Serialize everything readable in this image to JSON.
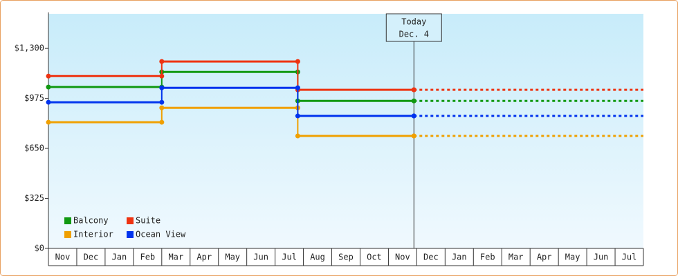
{
  "chart_data": {
    "type": "step",
    "categories": [
      "Nov",
      "Dec",
      "Jan",
      "Feb",
      "Mar",
      "Apr",
      "May",
      "Jun",
      "Jul",
      "Aug",
      "Sep",
      "Oct",
      "Nov",
      "Dec",
      "Jan",
      "Feb",
      "Mar",
      "Apr",
      "May",
      "Jun",
      "Jul"
    ],
    "x": [
      0,
      4,
      8.8,
      12.9
    ],
    "xlim": [
      0,
      21
    ],
    "ylim": [
      0,
      1525
    ],
    "yticks": [
      {
        "value": 0,
        "label": "$0"
      },
      {
        "value": 325,
        "label": "$325"
      },
      {
        "value": 650,
        "label": "$650"
      },
      {
        "value": 975,
        "label": "$975"
      },
      {
        "value": 1300,
        "label": "$1,300"
      }
    ],
    "series": [
      {
        "name": "Balcony",
        "color": "#119911",
        "values": [
          1049,
          1147,
          959,
          959
        ]
      },
      {
        "name": "Suite",
        "color": "#ee3311",
        "values": [
          1120,
          1215,
          1031,
          1031
        ]
      },
      {
        "name": "Interior",
        "color": "#f0a000",
        "values": [
          820,
          914,
          731,
          731
        ]
      },
      {
        "name": "Ocean View",
        "color": "#0033ee",
        "values": [
          950,
          1044,
          861,
          861
        ]
      }
    ],
    "annotation": {
      "x": 12.9,
      "lines": [
        "Today",
        "Dec. 4"
      ]
    },
    "projection": "dashed"
  }
}
